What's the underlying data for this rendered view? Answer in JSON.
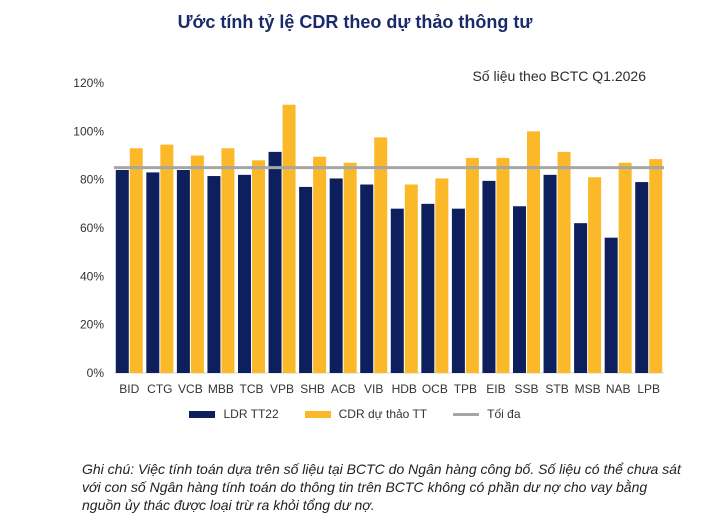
{
  "chart_data": {
    "type": "bar",
    "title": "Ước tính tỷ lệ CDR theo dự thảo thông tư",
    "subtitle": "Số liệu theo BCTC Q1.2026",
    "categories": [
      "BID",
      "CTG",
      "VCB",
      "MBB",
      "TCB",
      "VPB",
      "SHB",
      "ACB",
      "VIB",
      "HDB",
      "OCB",
      "TPB",
      "EIB",
      "SSB",
      "STB",
      "MSB",
      "NAB",
      "LPB"
    ],
    "series": [
      {
        "name": "LDR TT22",
        "color": "#0d1f5c",
        "values": [
          84,
          83,
          84,
          81.5,
          82,
          91.5,
          77,
          80.5,
          78,
          68,
          70,
          68,
          79.5,
          69,
          82,
          62,
          56,
          79
        ]
      },
      {
        "name": "CDR dự thảo TT",
        "color": "#fbb829",
        "values": [
          93,
          94.5,
          90,
          93,
          88,
          111,
          89.5,
          87,
          97.5,
          78,
          80.5,
          89,
          89,
          100,
          91.5,
          81,
          87,
          88.5
        ]
      }
    ],
    "reference_line": {
      "name": "Tối đa",
      "value": 85,
      "color": "#a6a6a6"
    },
    "yticks": [
      "0%",
      "20%",
      "40%",
      "60%",
      "80%",
      "100%",
      "120%"
    ],
    "ylim": [
      0,
      120
    ],
    "legend_position": "bottom"
  },
  "note": "Ghi chú: Việc tính toán dựa trên số liệu tại BCTC do Ngân hàng công bố. Số liệu có thể chưa sát với con số Ngân hàng tính toán do thông tin trên BCTC không có phần dư nợ cho vay bằng nguồn ủy thác được loại trừ ra khỏi tổng dư nợ."
}
